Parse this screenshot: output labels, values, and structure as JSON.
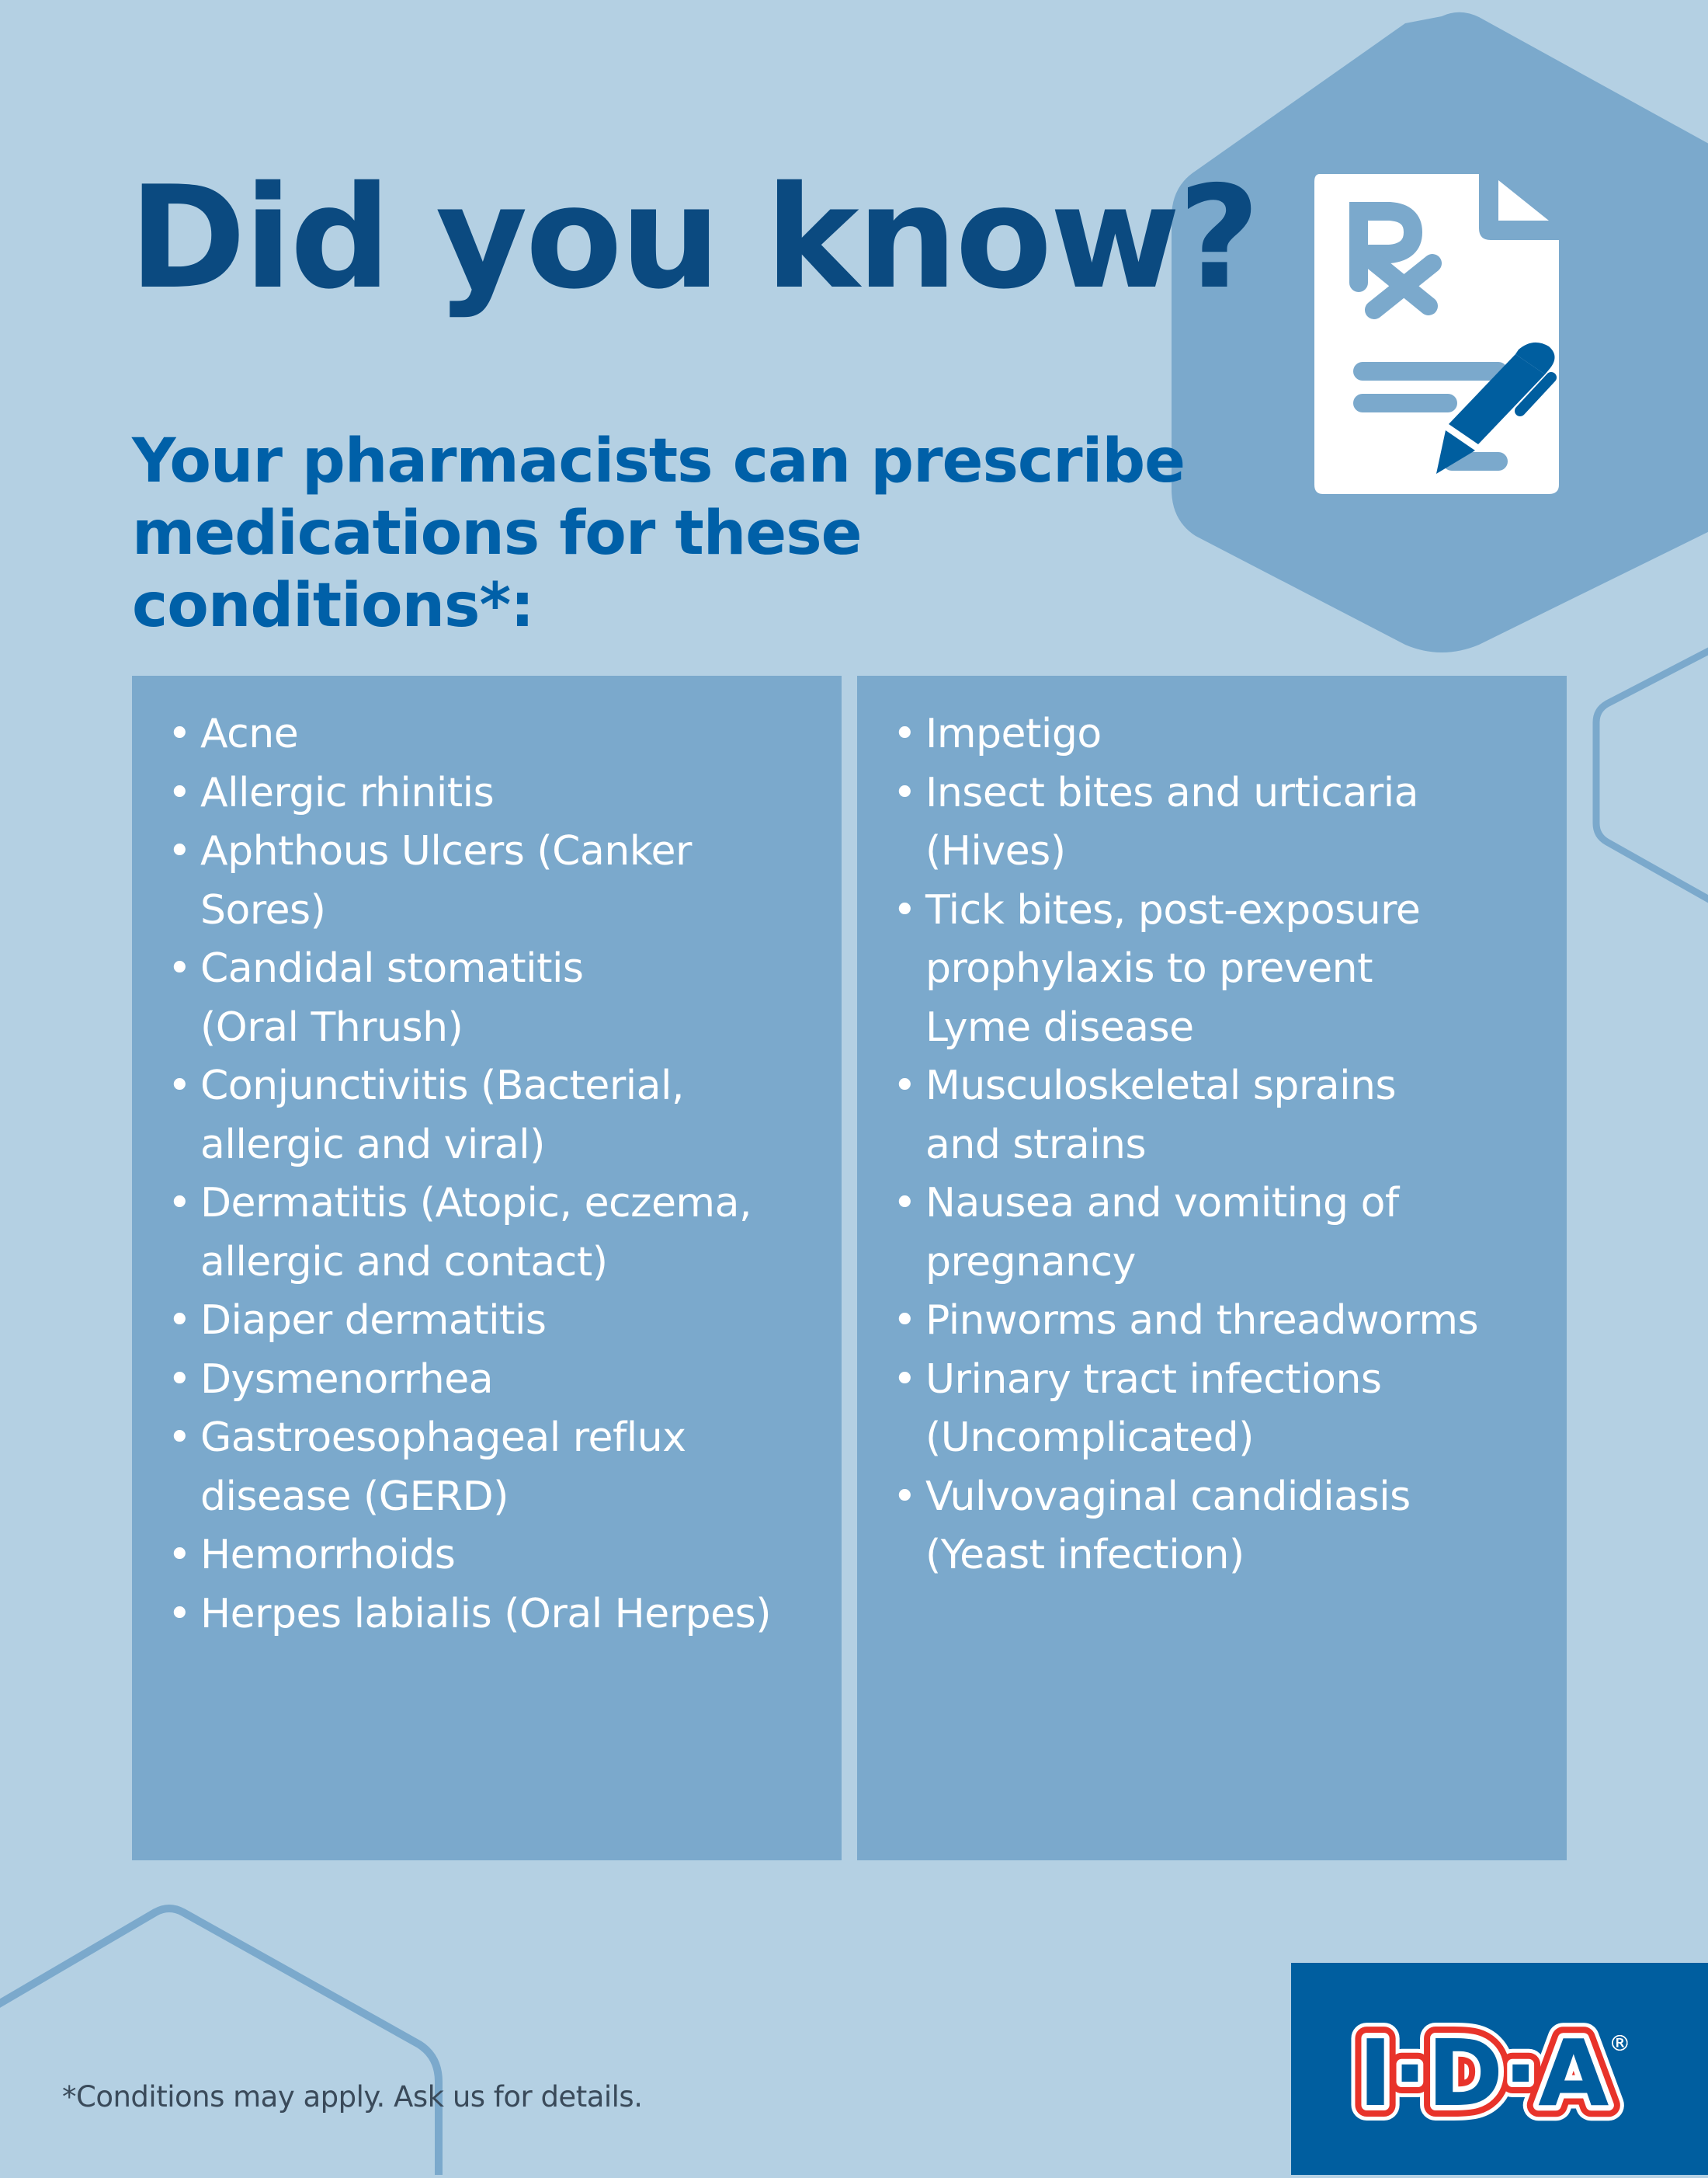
{
  "header": {
    "title": "Did you know?",
    "subtitle_line1": "Your pharmacists can prescribe",
    "subtitle_line2": "medications for these conditions*:"
  },
  "icon": {
    "name": "prescription-pen-icon",
    "rx_label": "Rx"
  },
  "conditions": {
    "left": [
      "Acne",
      "Allergic rhinitis",
      "Aphthous Ulcers (Canker Sores)",
      "Candidal stomatitis\n(Oral Thrush)",
      "Conjunctivitis (Bacterial,\nallergic and viral)",
      "Dermatitis (Atopic, eczema,\nallergic and contact)",
      "Diaper dermatitis",
      "Dysmenorrhea",
      "Gastroesophageal reflux\ndisease (GERD)",
      "Hemorrhoids",
      "Herpes labialis (Oral Herpes)"
    ],
    "right": [
      "Impetigo",
      "Insect bites and urticaria\n(Hives)",
      "Tick bites, post-exposure\nprophylaxis to prevent\nLyme disease",
      "Musculoskeletal sprains\nand strains",
      "Nausea and vomiting of\npregnancy",
      "Pinworms and threadworms",
      "Urinary tract infections\n(Uncomplicated)",
      "Vulvovaginal candidiasis\n(Yeast infection)"
    ]
  },
  "footer": {
    "note": "*Conditions may apply. Ask us for details.",
    "logo_text": "I·D·A®"
  },
  "colors": {
    "background": "#b4d0e3",
    "panel": "#7ba9cc",
    "title": "#0b4a80",
    "subtitle": "#0060a8",
    "brand_blue": "#005e9f",
    "brand_red": "#e8332a"
  }
}
